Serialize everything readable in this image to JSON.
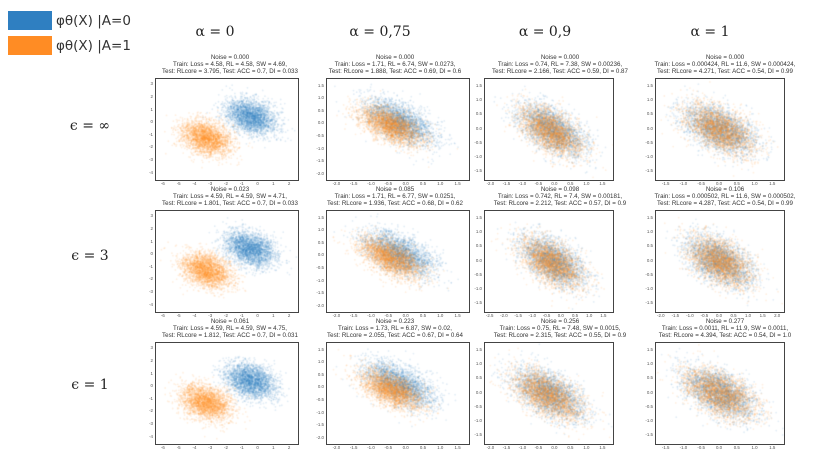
{
  "legend": {
    "items": [
      {
        "label": "φθ(X) |A=0",
        "color": "#2f7fc1"
      },
      {
        "label": "φθ(X) |A=1",
        "color": "#ff8c24"
      }
    ]
  },
  "column_headers": [
    "α = 0",
    "α = 0,75",
    "α = 0,9",
    "α = 1"
  ],
  "row_headers": [
    "ϵ = ∞",
    "ϵ = 3",
    "ϵ = 1"
  ],
  "chart_data": {
    "type": "scatter",
    "series_names": [
      "φθ(X) |A=0",
      "φθ(X) |A=1"
    ],
    "grid": false,
    "panels": [
      {
        "row": 0,
        "col": 0,
        "lines": [
          "Noise = 0.000",
          "Train: Loss = 4.58, RL = 4.58,  SW = 4.69,",
          "Test: RLcore = 3.795, Test: ACC = 0.7,  DI = 0.033"
        ],
        "xticks": [
          "-6",
          "-5",
          "-4",
          "-3",
          "-2",
          "-1",
          "0",
          "1",
          "2"
        ],
        "yticks": [
          "3",
          "2",
          "1",
          "0",
          "-1",
          "-2",
          "-3",
          "-4"
        ],
        "xlim": [
          -6.5,
          2.5
        ],
        "ylim": [
          -4.5,
          3.5
        ],
        "cluster_A0": {
          "cx": -0.5,
          "cy": 0.5,
          "sx": 0.8,
          "sy": 0.7,
          "rho": -0.3
        },
        "cluster_A1": {
          "cx": -3.3,
          "cy": -1.2,
          "sx": 0.8,
          "sy": 0.7,
          "rho": -0.3
        }
      },
      {
        "row": 0,
        "col": 1,
        "lines": [
          "Noise = 0.000",
          "Train: Loss = 1.71, RL = 6.74,  SW = 0.0273,",
          "Test: RLcore = 1.888, Test: ACC = 0.69,  DI = 0.6"
        ],
        "xticks": [
          "-2.0",
          "-1.5",
          "-1.0",
          "-0.5",
          "0.0",
          "0.5",
          "1.0",
          "1.5"
        ],
        "yticks": [
          "1.5",
          "1.0",
          "0.5",
          "0.0",
          "-0.5",
          "-1.0",
          "-1.5",
          "-2.0"
        ],
        "xlim": [
          -2.3,
          1.8
        ],
        "ylim": [
          -2.2,
          1.8
        ],
        "cluster_A0": {
          "cx": -0.2,
          "cy": 0.1,
          "sx": 0.5,
          "sy": 0.45,
          "rho": -0.55
        },
        "cluster_A1": {
          "cx": -0.45,
          "cy": -0.05,
          "sx": 0.45,
          "sy": 0.4,
          "rho": -0.55
        }
      },
      {
        "row": 0,
        "col": 2,
        "lines": [
          "Noise = 0.000",
          "Train: Loss = 0.74, RL = 7.38,  SW = 0.00236,",
          "Test: RLcore = 2.166, Test: ACC = 0.59,  DI = 0.87"
        ],
        "xticks": [
          "-2.0",
          "-1.5",
          "-1.0",
          "-0.5",
          "0.0",
          "0.5",
          "1.0",
          "1.5"
        ],
        "yticks": [
          "1.5",
          "1.0",
          "0.5",
          "0.0",
          "-0.5",
          "-1.0",
          "-1.5"
        ],
        "xlim": [
          -2.2,
          1.8
        ],
        "ylim": [
          -1.8,
          1.8
        ],
        "cluster_A0": {
          "cx": -0.1,
          "cy": 0.0,
          "sx": 0.5,
          "sy": 0.45,
          "rho": -0.55
        },
        "cluster_A1": {
          "cx": -0.15,
          "cy": -0.05,
          "sx": 0.5,
          "sy": 0.45,
          "rho": -0.55
        }
      },
      {
        "row": 0,
        "col": 3,
        "lines": [
          "Noise = 0.000",
          "Train: Loss = 0.000424, RL = 11.6,  SW = 0.000424,",
          "Test: RLcore = 4.271, Test: ACC = 0.54,  DI = 0.99"
        ],
        "xticks": [
          "-1.5",
          "-1.0",
          "-0.5",
          "0.0",
          "0.5",
          "1.0",
          "1.5"
        ],
        "yticks": [
          "1.5",
          "1.0",
          "0.5",
          "0.0",
          "-0.5",
          "-1.0",
          "-1.5"
        ],
        "xlim": [
          -1.8,
          1.8
        ],
        "ylim": [
          -1.8,
          1.8
        ],
        "cluster_A0": {
          "cx": 0.0,
          "cy": 0.0,
          "sx": 0.5,
          "sy": 0.45,
          "rho": -0.5
        },
        "cluster_A1": {
          "cx": 0.0,
          "cy": 0.0,
          "sx": 0.5,
          "sy": 0.45,
          "rho": -0.5
        }
      },
      {
        "row": 1,
        "col": 0,
        "lines": [
          "Noise = 0.023",
          "Train: Loss = 4.59, RL = 4.59,  SW = 4.71,",
          "Test: RLcore = 1.801, Test: ACC = 0.7,  DI = 0.033"
        ],
        "xticks": [
          "-6",
          "-5",
          "-4",
          "-3",
          "-2",
          "-1",
          "0",
          "1",
          "2"
        ],
        "yticks": [
          "3",
          "2",
          "1",
          "0",
          "-1",
          "-2",
          "-3",
          "-4"
        ],
        "xlim": [
          -6.5,
          2.5
        ],
        "ylim": [
          -4.5,
          3.5
        ],
        "cluster_A0": {
          "cx": -0.5,
          "cy": 0.5,
          "sx": 0.8,
          "sy": 0.7,
          "rho": -0.3
        },
        "cluster_A1": {
          "cx": -3.3,
          "cy": -1.2,
          "sx": 0.8,
          "sy": 0.7,
          "rho": -0.3
        }
      },
      {
        "row": 1,
        "col": 1,
        "lines": [
          "Noise = 0.085",
          "Train: Loss = 1.71, RL = 6.77,  SW = 0.0251,",
          "Test: RLcore = 1.936, Test: ACC = 0.68,  DI = 0.62"
        ],
        "xticks": [
          "-2.0",
          "-1.5",
          "-1.0",
          "-0.5",
          "0.0",
          "0.5",
          "1.0",
          "1.5"
        ],
        "yticks": [
          "1.5",
          "1.0",
          "0.5",
          "0.0",
          "-0.5",
          "-1.0",
          "-1.5",
          "-2.0"
        ],
        "xlim": [
          -2.3,
          1.8
        ],
        "ylim": [
          -2.2,
          1.8
        ],
        "cluster_A0": {
          "cx": -0.2,
          "cy": 0.1,
          "sx": 0.5,
          "sy": 0.45,
          "rho": -0.55
        },
        "cluster_A1": {
          "cx": -0.45,
          "cy": -0.05,
          "sx": 0.45,
          "sy": 0.4,
          "rho": -0.55
        }
      },
      {
        "row": 1,
        "col": 2,
        "lines": [
          "Noise = 0.098",
          "Train: Loss = 0.742, RL = 7.4,  SW = 0.00181,",
          "Test: RLcore = 2.212, Test: ACC = 0.57,  DI = 0.9"
        ],
        "xticks": [
          "-2.5",
          "-2.0",
          "-1.5",
          "-1.0",
          "-0.5",
          "0.0",
          "0.5",
          "1.0",
          "1.5"
        ],
        "yticks": [
          "1.5",
          "1.0",
          "0.5",
          "0.0",
          "-0.5",
          "-1.0",
          "-1.5"
        ],
        "xlim": [
          -2.7,
          1.8
        ],
        "ylim": [
          -1.8,
          1.8
        ],
        "cluster_A0": {
          "cx": -0.3,
          "cy": 0.0,
          "sx": 0.55,
          "sy": 0.45,
          "rho": -0.55
        },
        "cluster_A1": {
          "cx": -0.35,
          "cy": -0.05,
          "sx": 0.55,
          "sy": 0.45,
          "rho": -0.55
        }
      },
      {
        "row": 1,
        "col": 3,
        "lines": [
          "Noise = 0.106",
          "Train: Loss = 0.000502, RL = 11.6,  SW = 0.000502,",
          "Test: RLcore = 4.287, Test: ACC = 0.54,  DI = 0.99"
        ],
        "xticks": [
          "-2.0",
          "-1.5",
          "-1.0",
          "-0.5",
          "0.0",
          "0.5",
          "1.0",
          "1.5",
          "2.0"
        ],
        "yticks": [
          "1.5",
          "1.0",
          "0.5",
          "0.0",
          "-0.5",
          "-1.0",
          "-1.5"
        ],
        "xlim": [
          -2.2,
          2.2
        ],
        "ylim": [
          -1.8,
          1.8
        ],
        "cluster_A0": {
          "cx": 0.0,
          "cy": 0.0,
          "sx": 0.55,
          "sy": 0.45,
          "rho": -0.5
        },
        "cluster_A1": {
          "cx": 0.0,
          "cy": 0.0,
          "sx": 0.55,
          "sy": 0.45,
          "rho": -0.5
        }
      },
      {
        "row": 2,
        "col": 0,
        "lines": [
          "Noise = 0.061",
          "Train: Loss = 4.59, RL = 4.59,  SW = 4.75,",
          "Test: RLcore = 1.812, Test: ACC = 0.7,  DI = 0.031"
        ],
        "xticks": [
          "-6",
          "-5",
          "-4",
          "-3",
          "-2",
          "-1",
          "0",
          "1",
          "2"
        ],
        "yticks": [
          "3",
          "2",
          "1",
          "0",
          "-1",
          "-2",
          "-3",
          "-4"
        ],
        "xlim": [
          -6.5,
          2.5
        ],
        "ylim": [
          -4.5,
          3.5
        ],
        "cluster_A0": {
          "cx": -0.5,
          "cy": 0.5,
          "sx": 0.8,
          "sy": 0.7,
          "rho": -0.3
        },
        "cluster_A1": {
          "cx": -3.3,
          "cy": -1.2,
          "sx": 0.8,
          "sy": 0.7,
          "rho": -0.3
        }
      },
      {
        "row": 2,
        "col": 1,
        "lines": [
          "Noise = 0.223",
          "Train: Loss = 1.73, RL = 6.87,  SW = 0.02,",
          "Test: RLcore = 2.055, Test: ACC = 0.67,  DI = 0.64"
        ],
        "xticks": [
          "-2.0",
          "-1.5",
          "-1.0",
          "-0.5",
          "0.0",
          "0.5",
          "1.0",
          "1.5"
        ],
        "yticks": [
          "1.5",
          "1.0",
          "0.5",
          "0.0",
          "-0.5",
          "-1.0",
          "-1.5",
          "-2.0"
        ],
        "xlim": [
          -2.3,
          1.8
        ],
        "ylim": [
          -2.2,
          1.8
        ],
        "cluster_A0": {
          "cx": -0.2,
          "cy": 0.15,
          "sx": 0.5,
          "sy": 0.45,
          "rho": -0.55
        },
        "cluster_A1": {
          "cx": -0.45,
          "cy": -0.05,
          "sx": 0.45,
          "sy": 0.4,
          "rho": -0.55
        }
      },
      {
        "row": 2,
        "col": 2,
        "lines": [
          "Noise = 0.256",
          "Train: Loss = 0.75, RL = 7.48,  SW = 0.0015,",
          "Test: RLcore = 2.315, Test: ACC = 0.55,  DI = 0.9"
        ],
        "xticks": [
          "-2.0",
          "-1.5",
          "-1.0",
          "-0.5",
          "0.0",
          "0.5",
          "1.0",
          "1.5"
        ],
        "yticks": [
          "1.5",
          "1.0",
          "0.5",
          "0.0",
          "-0.5",
          "-1.0",
          "-1.5"
        ],
        "xlim": [
          -2.2,
          1.8
        ],
        "ylim": [
          -1.8,
          1.8
        ],
        "cluster_A0": {
          "cx": -0.2,
          "cy": 0.0,
          "sx": 0.55,
          "sy": 0.45,
          "rho": -0.55
        },
        "cluster_A1": {
          "cx": -0.25,
          "cy": -0.05,
          "sx": 0.55,
          "sy": 0.45,
          "rho": -0.55
        }
      },
      {
        "row": 2,
        "col": 3,
        "lines": [
          "Noise = 0.277",
          "Train: Loss = 0.0011, RL = 11.9,  SW = 0.0011,",
          "Test: RLcore = 4.394, Test: ACC = 0.54,  DI = 1.0"
        ],
        "xticks": [
          "-1.5",
          "-1.0",
          "-0.5",
          "0.0",
          "0.5",
          "1.0",
          "1.5"
        ],
        "yticks": [
          "1.5",
          "1.0",
          "0.5",
          "0.0",
          "-0.5",
          "-1.0",
          "-1.5"
        ],
        "xlim": [
          -1.8,
          1.8
        ],
        "ylim": [
          -1.8,
          1.8
        ],
        "cluster_A0": {
          "cx": 0.0,
          "cy": 0.0,
          "sx": 0.5,
          "sy": 0.45,
          "rho": -0.5
        },
        "cluster_A1": {
          "cx": 0.0,
          "cy": 0.0,
          "sx": 0.5,
          "sy": 0.45,
          "rho": -0.5
        }
      }
    ]
  }
}
